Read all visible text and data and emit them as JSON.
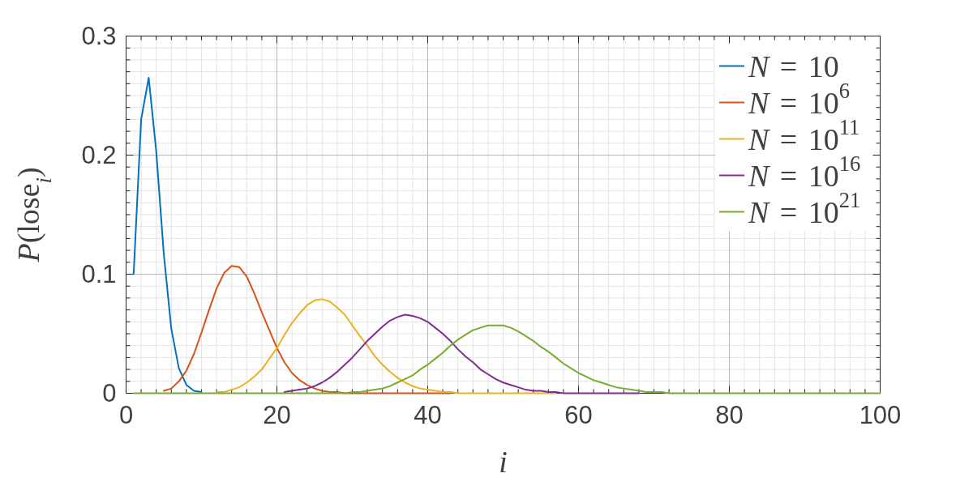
{
  "chart_data": {
    "type": "line",
    "xlabel": "i",
    "ylabel": "P(lose$_{i}$)",
    "x": [
      1,
      2,
      3,
      4,
      5,
      6,
      7,
      8,
      9,
      10,
      11,
      12,
      13,
      14,
      15,
      16,
      17,
      18,
      19,
      20,
      21,
      22,
      23,
      24,
      25,
      26,
      27,
      28,
      29,
      30,
      31,
      32,
      33,
      34,
      35,
      36,
      37,
      38,
      39,
      40,
      41,
      42,
      43,
      44,
      45,
      46,
      47,
      48,
      49,
      50,
      51,
      52,
      53,
      54,
      55,
      56,
      57,
      58,
      59,
      60,
      61,
      62,
      63,
      64,
      65,
      66,
      67,
      68,
      69,
      70,
      71,
      72,
      73,
      74,
      75,
      76,
      77,
      78,
      79,
      80,
      81,
      82,
      83,
      84,
      85,
      86,
      87,
      88,
      89,
      90,
      91,
      92,
      93,
      94,
      95,
      96,
      97,
      98,
      99,
      100
    ],
    "series": [
      {
        "name": "N = 10",
        "color": "#0072bd",
        "values": [
          0.1,
          0.23,
          0.265,
          0.203,
          0.117,
          0.054,
          0.021,
          0.007,
          0.002,
          0.001,
          null,
          null,
          null,
          null,
          null,
          null,
          null,
          null,
          null,
          null,
          null,
          null,
          null,
          null,
          null,
          null,
          null,
          null,
          null,
          null,
          null,
          null,
          null,
          null,
          null,
          null,
          null,
          null,
          null,
          null,
          null,
          null,
          null,
          null,
          null,
          null,
          null,
          null,
          null,
          null,
          null,
          null,
          null,
          null,
          null,
          null,
          null,
          null,
          null,
          null,
          null,
          null,
          null,
          null,
          null,
          null,
          null,
          null,
          null,
          null,
          null,
          null,
          null,
          null,
          null,
          null,
          null,
          null,
          null,
          null,
          null,
          null,
          null,
          null,
          null,
          null,
          null,
          null,
          null,
          null,
          null,
          null,
          null,
          null,
          null,
          null,
          null,
          null,
          null,
          null
        ]
      },
      {
        "name": "N = 10$^{6}$",
        "color": "#d95319",
        "values": [
          null,
          null,
          null,
          null,
          0.002,
          0.004,
          0.01,
          0.019,
          0.033,
          0.051,
          0.07,
          0.088,
          0.101,
          0.107,
          0.106,
          0.098,
          0.084,
          0.068,
          0.053,
          0.038,
          0.026,
          0.017,
          0.011,
          0.007,
          0.004,
          0.002,
          0.001,
          0.001,
          0,
          0,
          0,
          0,
          0,
          0,
          0,
          0,
          0,
          0,
          0,
          0,
          0,
          0,
          0,
          null,
          null,
          null,
          null,
          null,
          null,
          null,
          null,
          null,
          null,
          null,
          null,
          null,
          null,
          null,
          null,
          null,
          null,
          null,
          null,
          null,
          null,
          null,
          null,
          null,
          null,
          null,
          null,
          null,
          null,
          null,
          null,
          null,
          null,
          null,
          null,
          null,
          null,
          null,
          null,
          null,
          null,
          null,
          null,
          null,
          null,
          null,
          null,
          null,
          null,
          null,
          null,
          null,
          null,
          null,
          null,
          null
        ]
      },
      {
        "name": "N = 10$^{11}$",
        "color": "#edb120",
        "values": [
          null,
          null,
          null,
          null,
          null,
          null,
          null,
          null,
          null,
          null,
          null,
          0.001,
          0.001,
          0.003,
          0.005,
          0.009,
          0.014,
          0.02,
          0.029,
          0.038,
          0.049,
          0.059,
          0.067,
          0.074,
          0.078,
          0.079,
          0.077,
          0.072,
          0.066,
          0.057,
          0.048,
          0.04,
          0.031,
          0.024,
          0.018,
          0.013,
          0.009,
          0.006,
          0.004,
          0.003,
          0.002,
          0.001,
          0.001,
          0,
          0,
          0,
          0,
          0,
          0,
          0,
          0,
          0,
          0,
          0,
          0,
          0,
          0,
          null,
          null,
          null,
          null,
          null,
          null,
          null,
          null,
          null,
          null,
          null,
          null,
          null,
          null,
          null,
          null,
          null,
          null,
          null,
          null,
          null,
          null,
          null,
          null,
          null,
          null,
          null,
          null,
          null,
          null,
          null,
          null,
          null,
          null,
          null,
          null,
          null,
          null,
          null,
          null,
          null,
          null,
          null
        ]
      },
      {
        "name": "N = 10$^{16}$",
        "color": "#7e2f8e",
        "values": [
          null,
          null,
          null,
          null,
          null,
          null,
          null,
          null,
          null,
          null,
          null,
          null,
          null,
          null,
          null,
          null,
          null,
          null,
          null,
          null,
          0.001,
          0.002,
          0.003,
          0.004,
          0.006,
          0.009,
          0.013,
          0.018,
          0.024,
          0.03,
          0.037,
          0.044,
          0.05,
          0.056,
          0.061,
          0.064,
          0.066,
          0.065,
          0.063,
          0.06,
          0.055,
          0.05,
          0.044,
          0.037,
          0.031,
          0.026,
          0.02,
          0.016,
          0.012,
          0.009,
          0.007,
          0.005,
          0.003,
          0.002,
          0.002,
          0.001,
          0.001,
          0,
          0,
          0,
          0,
          0,
          0,
          0,
          0,
          0,
          0,
          0,
          null,
          null,
          null,
          null,
          null,
          null,
          null,
          null,
          null,
          null,
          null,
          null,
          null,
          null,
          null,
          null,
          null,
          null,
          null,
          null,
          null,
          null,
          null,
          null,
          null,
          null,
          null,
          null,
          null,
          null,
          null,
          null
        ]
      },
      {
        "name": "N = 10$^{21}$",
        "color": "#77ac30",
        "values": [
          0,
          0,
          0,
          0,
          0,
          0,
          0,
          0,
          0,
          0,
          0,
          0,
          0,
          0,
          0,
          0,
          0,
          0,
          0,
          0,
          0,
          0,
          0,
          0,
          0,
          0,
          0,
          0,
          0,
          0.001,
          0.001,
          0.002,
          0.003,
          0.004,
          0.006,
          0.009,
          0.012,
          0.015,
          0.02,
          0.024,
          0.029,
          0.034,
          0.04,
          0.045,
          0.049,
          0.053,
          0.055,
          0.057,
          0.057,
          0.057,
          0.055,
          0.052,
          0.048,
          0.044,
          0.039,
          0.035,
          0.03,
          0.025,
          0.021,
          0.017,
          0.014,
          0.011,
          0.009,
          0.007,
          0.005,
          0.004,
          0.003,
          0.002,
          0.001,
          0.001,
          0.001,
          0,
          0,
          0,
          0,
          0,
          0,
          0,
          0,
          0,
          0,
          0,
          0,
          0,
          0,
          0,
          0,
          0,
          0,
          0,
          0,
          0,
          0,
          0,
          0,
          0,
          0,
          0,
          0,
          0
        ]
      }
    ],
    "xlim": [
      0,
      100
    ],
    "ylim": [
      0,
      0.3
    ],
    "xticks": [
      0,
      {
        "value": 2,
        "label": null
      },
      {
        "value": 4,
        "label": null
      },
      {
        "value": 6,
        "label": null
      },
      {
        "value": 8,
        "label": null
      },
      {
        "value": 10,
        "label": null
      },
      {
        "value": 12,
        "label": null
      },
      {
        "value": 14,
        "label": null
      },
      {
        "value": 16,
        "label": null
      },
      {
        "value": 18,
        "label": null
      },
      20,
      {
        "value": 22,
        "label": null
      },
      {
        "value": 24,
        "label": null
      },
      {
        "value": 26,
        "label": null
      },
      {
        "value": 28,
        "label": null
      },
      {
        "value": 30,
        "label": null
      },
      {
        "value": 32,
        "label": null
      },
      {
        "value": 34,
        "label": null
      },
      {
        "value": 36,
        "label": null
      },
      {
        "value": 38,
        "label": null
      },
      40,
      {
        "value": 42,
        "label": null
      },
      {
        "value": 44,
        "label": null
      },
      {
        "value": 46,
        "label": null
      },
      {
        "value": 48,
        "label": null
      },
      {
        "value": 50,
        "label": null
      },
      {
        "value": 52,
        "label": null
      },
      {
        "value": 54,
        "label": null
      },
      {
        "value": 56,
        "label": null
      },
      {
        "value": 58,
        "label": null
      },
      60,
      {
        "value": 62,
        "label": null
      },
      {
        "value": 64,
        "label": null
      },
      {
        "value": 66,
        "label": null
      },
      {
        "value": 68,
        "label": null
      },
      {
        "value": 70,
        "label": null
      },
      {
        "value": 72,
        "label": null
      },
      {
        "value": 74,
        "label": null
      },
      {
        "value": 76,
        "label": null
      },
      {
        "value": 78,
        "label": null
      },
      80,
      {
        "value": 82,
        "label": null
      },
      {
        "value": 84,
        "label": null
      },
      {
        "value": 86,
        "label": null
      },
      {
        "value": 88,
        "label": null
      },
      {
        "value": 90,
        "label": null
      },
      {
        "value": 92,
        "label": null
      },
      {
        "value": 94,
        "label": null
      },
      {
        "value": 96,
        "label": null
      },
      {
        "value": 98,
        "label": null
      },
      100
    ],
    "yticks": [
      0,
      {
        "value": 0.01,
        "label": null
      },
      {
        "value": 0.02,
        "label": null
      },
      {
        "value": 0.03,
        "label": null
      },
      {
        "value": 0.04,
        "label": null
      },
      {
        "value": 0.05,
        "label": null
      },
      {
        "value": 0.06,
        "label": null
      },
      {
        "value": 0.07,
        "label": null
      },
      {
        "value": 0.08,
        "label": null
      },
      {
        "value": 0.09,
        "label": null
      },
      0.1,
      {
        "value": 0.11,
        "label": null
      },
      {
        "value": 0.12,
        "label": null
      },
      {
        "value": 0.13,
        "label": null
      },
      {
        "value": 0.14,
        "label": null
      },
      {
        "value": 0.15,
        "label": null
      },
      {
        "value": 0.16,
        "label": null
      },
      {
        "value": 0.17,
        "label": null
      },
      {
        "value": 0.18,
        "label": null
      },
      {
        "value": 0.19,
        "label": null
      },
      0.2,
      {
        "value": 0.21,
        "label": null
      },
      {
        "value": 0.22,
        "label": null
      },
      {
        "value": 0.23,
        "label": null
      },
      {
        "value": 0.24,
        "label": null
      },
      {
        "value": 0.25,
        "label": null
      },
      {
        "value": 0.26,
        "label": null
      },
      {
        "value": 0.27,
        "label": null
      },
      {
        "value": 0.28,
        "label": null
      },
      {
        "value": 0.29,
        "label": null
      },
      0.3
    ],
    "grid": true,
    "legend": "top right",
    "line_style": "solid"
  }
}
